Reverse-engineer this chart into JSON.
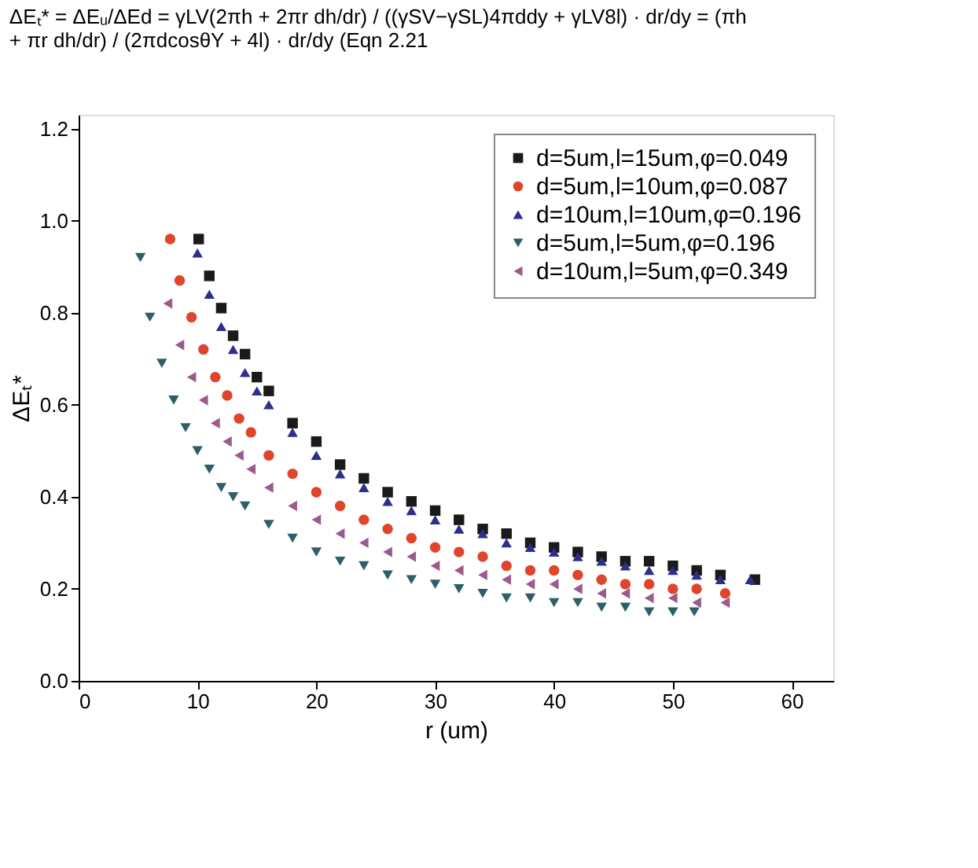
{
  "chart_data": {
    "type": "scatter",
    "annotations": [
      "ΔEₜ* = ΔEᵤ/ΔEd = γLV(2πh + 2πr dh/dr) / ((γSV−γSL)4πddy + γLV8l) · dr/dy = (πh + πr dh/dr) / (2πdcosθY + 4l) · dr/dy (Eqn 2.21"
    ],
    "xlabel": "r (um)",
    "ylabel": "ΔEₜ*",
    "xlim": [
      0,
      63.5
    ],
    "xticks": [
      0,
      10,
      20,
      30,
      40,
      50,
      60
    ],
    "ylim": [
      0,
      1.23
    ],
    "yticks": [
      {
        "value": 0,
        "label": "0.0"
      },
      0.2,
      0.4,
      0.6,
      0.8,
      {
        "value": 1,
        "label": "1.0"
      },
      1.2
    ],
    "grid": false,
    "legend": "top right",
    "series": [
      {
        "name": "d=5um,l=15um,φ=0.049",
        "color": "#1a1a1a",
        "marker": "square",
        "x": [
          10.1,
          11,
          12,
          13,
          14,
          15,
          16,
          18,
          20,
          22,
          24,
          26,
          28,
          30,
          32,
          34,
          36,
          38,
          40,
          42,
          44,
          46,
          48,
          50,
          52,
          54,
          56.9
        ],
        "values": [
          0.96,
          0.88,
          0.81,
          0.75,
          0.71,
          0.66,
          0.63,
          0.56,
          0.52,
          0.47,
          0.44,
          0.41,
          0.39,
          0.37,
          0.35,
          0.33,
          0.32,
          0.3,
          0.29,
          0.28,
          0.27,
          0.26,
          0.26,
          0.25,
          0.24,
          0.23,
          0.22
        ]
      },
      {
        "name": "d=5um,l=10um,φ=0.087",
        "color": "#e0452c",
        "marker": "circle",
        "x": [
          7.7,
          8.5,
          9.5,
          10.5,
          11.5,
          12.5,
          13.5,
          14.5,
          16,
          18,
          20,
          22,
          24,
          26,
          28,
          30,
          32,
          34,
          36,
          38,
          40,
          42,
          44,
          46,
          48,
          50,
          52,
          54.4
        ],
        "values": [
          0.96,
          0.87,
          0.79,
          0.72,
          0.66,
          0.62,
          0.57,
          0.54,
          0.49,
          0.45,
          0.41,
          0.38,
          0.35,
          0.33,
          0.31,
          0.29,
          0.28,
          0.27,
          0.25,
          0.24,
          0.24,
          0.23,
          0.22,
          0.21,
          0.21,
          0.2,
          0.2,
          0.19
        ]
      },
      {
        "name": "d=10um,l=10um,φ=0.196",
        "color": "#2e2e8c",
        "marker": "triangle-up",
        "x": [
          10,
          11,
          12,
          13,
          14,
          15,
          16,
          18,
          20,
          22,
          24,
          26,
          28,
          30,
          32,
          34,
          36,
          38,
          40,
          42,
          44,
          46,
          48,
          50,
          52,
          54,
          56.5
        ],
        "values": [
          0.93,
          0.84,
          0.77,
          0.72,
          0.67,
          0.63,
          0.6,
          0.54,
          0.49,
          0.45,
          0.42,
          0.39,
          0.37,
          0.35,
          0.33,
          0.32,
          0.3,
          0.29,
          0.28,
          0.27,
          0.26,
          0.25,
          0.24,
          0.24,
          0.23,
          0.22,
          0.22
        ]
      },
      {
        "name": "d=5um,l=5um,φ=0.196",
        "color": "#2b5f6a",
        "marker": "triangle-down",
        "x": [
          5.2,
          6,
          7,
          8,
          9,
          10,
          11,
          12,
          13,
          14,
          16,
          18,
          20,
          22,
          24,
          26,
          28,
          30,
          32,
          34,
          36,
          38,
          40,
          42,
          44,
          46,
          48,
          50,
          51.8
        ],
        "values": [
          0.92,
          0.79,
          0.69,
          0.61,
          0.55,
          0.5,
          0.46,
          0.42,
          0.4,
          0.38,
          0.34,
          0.31,
          0.28,
          0.26,
          0.25,
          0.23,
          0.22,
          0.21,
          0.2,
          0.19,
          0.18,
          0.18,
          0.17,
          0.17,
          0.16,
          0.16,
          0.15,
          0.15,
          0.15
        ]
      },
      {
        "name": "d=10um,l=5um,φ=0.349",
        "color": "#9a5b8c",
        "marker": "triangle-left",
        "x": [
          7.5,
          8.5,
          9.5,
          10.5,
          11.5,
          12.5,
          13.5,
          14.5,
          16,
          18,
          20,
          22,
          24,
          26,
          28,
          30,
          32,
          34,
          36,
          38,
          40,
          42,
          44,
          46,
          48,
          50,
          52,
          54.4
        ],
        "values": [
          0.82,
          0.73,
          0.66,
          0.61,
          0.56,
          0.52,
          0.49,
          0.46,
          0.42,
          0.38,
          0.35,
          0.32,
          0.3,
          0.28,
          0.27,
          0.25,
          0.24,
          0.23,
          0.22,
          0.21,
          0.21,
          0.2,
          0.19,
          0.19,
          0.18,
          0.18,
          0.17,
          0.17
        ]
      }
    ]
  }
}
